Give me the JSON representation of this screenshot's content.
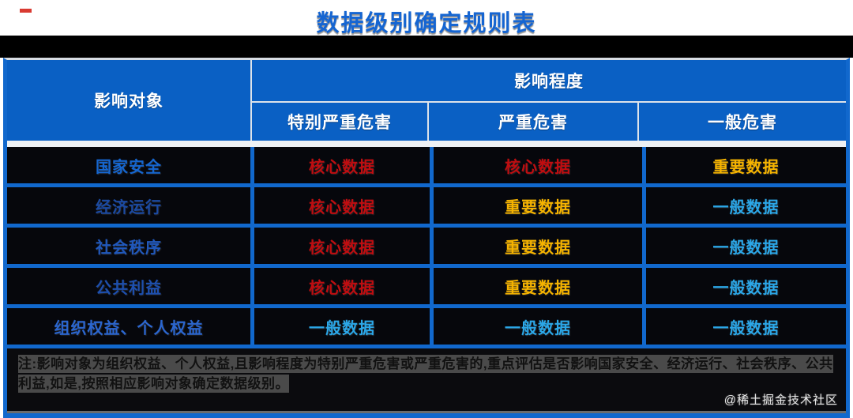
{
  "title": "数据级别确定规则表",
  "watermark": "@稀土掘金技术社区",
  "header": {
    "object_label": "影响对象",
    "impact_group_label": "影响程度",
    "sub_headers": [
      "特别严重危害",
      "严重危害",
      "一般危害"
    ]
  },
  "colors": {
    "header_bg": "#0a60c4",
    "grid_blue": "#1168cd",
    "title_blue": "#1565d2",
    "cell_bg": "#06070c",
    "core_data_red": "#c00d10",
    "important_data_gold": "#f5b300",
    "general_data_cyan": "#2ba7e8"
  },
  "chart_data": {
    "type": "table",
    "title": "数据级别确定规则表",
    "row_header_label": "影响对象",
    "column_group_label": "影响程度",
    "columns": [
      "特别严重危害",
      "严重危害",
      "一般危害"
    ],
    "rows": [
      {
        "object": "国家安全",
        "object_color": "#1566d0",
        "cells": [
          {
            "text": "核心数据",
            "color": "#c00d10"
          },
          {
            "text": "核心数据",
            "color": "#c00d10"
          },
          {
            "text": "重要数据",
            "color": "#f5b300"
          }
        ]
      },
      {
        "object": "经济运行",
        "object_color": "#1b4aa2",
        "cells": [
          {
            "text": "核心数据",
            "color": "#c00d10"
          },
          {
            "text": "重要数据",
            "color": "#f5b300"
          },
          {
            "text": "一般数据",
            "color": "#2ba7e8"
          }
        ]
      },
      {
        "object": "社会秩序",
        "object_color": "#2058bc",
        "cells": [
          {
            "text": "核心数据",
            "color": "#c00d10"
          },
          {
            "text": "重要数据",
            "color": "#f5b300"
          },
          {
            "text": "一般数据",
            "color": "#2ba7e8"
          }
        ]
      },
      {
        "object": "公共利益",
        "object_color": "#1d4fae",
        "cells": [
          {
            "text": "核心数据",
            "color": "#c00d10"
          },
          {
            "text": "重要数据",
            "color": "#f5b300"
          },
          {
            "text": "一般数据",
            "color": "#2ba7e8"
          }
        ]
      },
      {
        "object": "组织权益、个人权益",
        "object_color": "#2b66cf",
        "cells": [
          {
            "text": "一般数据",
            "color": "#2ba7e8"
          },
          {
            "text": "一般数据",
            "color": "#2ba7e8"
          },
          {
            "text": "一般数据",
            "color": "#2ba7e8"
          }
        ]
      }
    ],
    "note": "注:影响对象为组织权益、个人权益,且影响程度为特别严重危害或严重危害的,重点评估是否影响国家安全、经济运行、社会秩序、公共利益,如是,按照相应影响对象确定数据级别。"
  }
}
